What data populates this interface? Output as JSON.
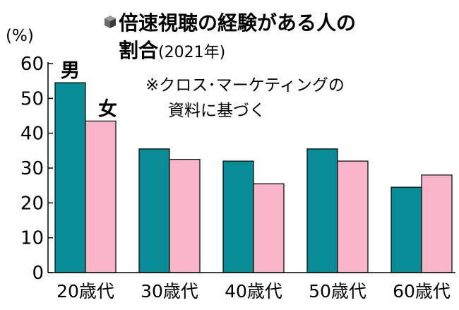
{
  "chart_data": {
    "type": "bar",
    "title": "倍速視聴の経験がある人の",
    "title_line2": "割合",
    "title_year": "(2021年)",
    "title_icon": "cube-icon",
    "ylabel": "(%)",
    "ylim": [
      0,
      60
    ],
    "yticks": [
      0,
      10,
      20,
      30,
      40,
      50,
      60
    ],
    "categories": [
      "20歳代",
      "30歳代",
      "40歳代",
      "50歳代",
      "60歳代"
    ],
    "series": [
      {
        "name": "男",
        "color": "#0a8c96",
        "values": [
          54.5,
          35.5,
          32,
          35.5,
          24.5
        ]
      },
      {
        "name": "女",
        "color": "#f8b4c8",
        "values": [
          43.5,
          32.5,
          25.5,
          32,
          28
        ]
      }
    ],
    "note_line1": "※クロス･マーケティングの",
    "note_line2": "資料に基づく",
    "grid": false
  }
}
